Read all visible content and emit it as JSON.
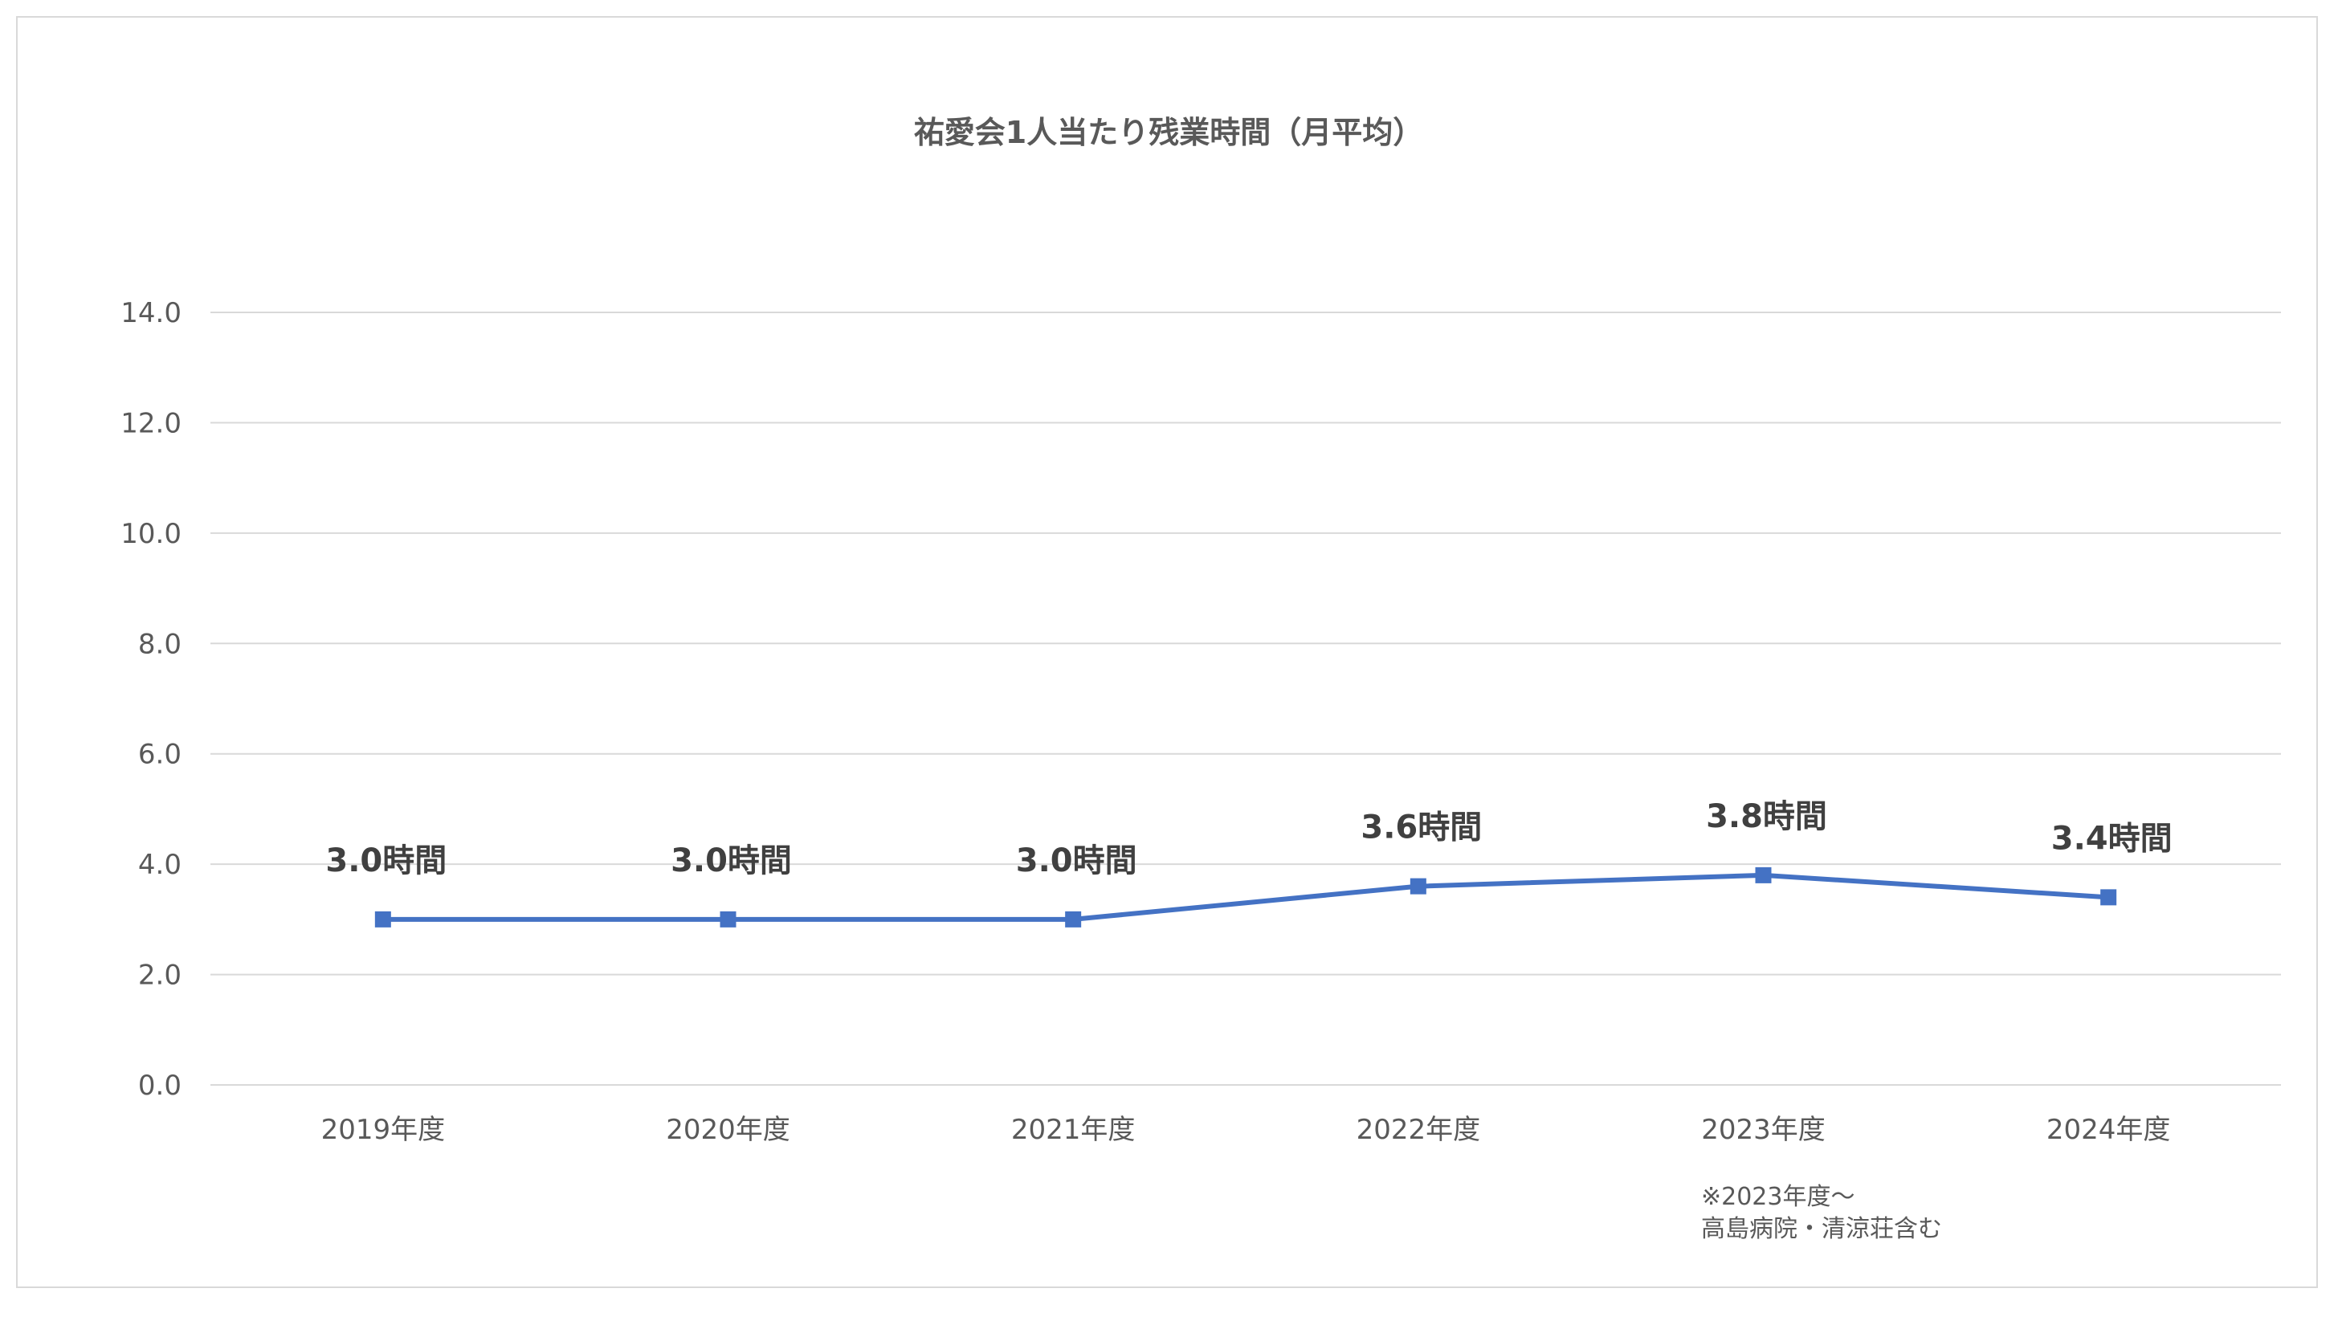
{
  "chart_data": {
    "type": "line",
    "title": "祐愛会1人当たり残業時間（月平均）",
    "categories": [
      "2019年度",
      "2020年度",
      "2021年度",
      "2022年度",
      "2023年度",
      "2024年度"
    ],
    "series": [
      {
        "values": [
          3.0,
          3.0,
          3.0,
          3.6,
          3.8,
          3.4
        ],
        "data_labels": [
          "3.0時間",
          "3.0時間",
          "3.0時間",
          "3.6時間",
          "3.8時間",
          "3.4時間"
        ],
        "color": "#4472c4",
        "marker": "square"
      }
    ],
    "ylim": [
      0,
      14
    ],
    "yticks": [
      "0.0",
      "2.0",
      "4.0",
      "6.0",
      "8.0",
      "10.0",
      "12.0",
      "14.0"
    ],
    "grid": true,
    "legend": "none",
    "annotation_lines": [
      "※2023年度〜",
      "高島病院・清涼荘含む"
    ]
  }
}
